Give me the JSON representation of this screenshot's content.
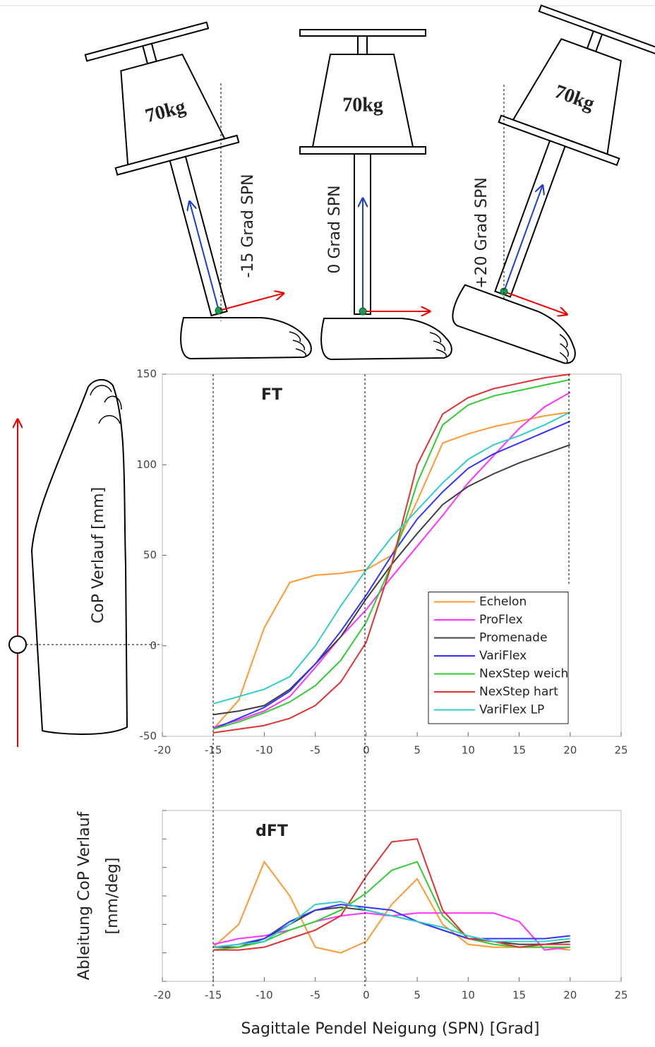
{
  "diagram": {
    "pendulums": [
      {
        "weight": "70kg",
        "label": "-15 Grad SPN"
      },
      {
        "weight": "70kg",
        "label": "0 Grad SPN"
      },
      {
        "weight": "70kg",
        "label": "+20 Grad SPN"
      }
    ]
  },
  "chart_data": [
    {
      "type": "line",
      "annotation": "FT",
      "ylabel": [
        "CoP Verlauf [mm]"
      ],
      "xlim": [
        -20,
        25
      ],
      "xticks": [
        -20,
        -15,
        -10,
        -5,
        0,
        5,
        10,
        15,
        20,
        25
      ],
      "ylim": [
        -50,
        150
      ],
      "yticks": [
        -50,
        0,
        50,
        100,
        150
      ],
      "ytick_labels": true,
      "legend": "lower right",
      "x": [
        -15,
        -12.5,
        -10,
        -7.5,
        -5,
        -2.5,
        0,
        2.5,
        5,
        7.5,
        10,
        12.5,
        15,
        17.5,
        20
      ],
      "series": [
        {
          "name": "Echelon",
          "color": "#ff9933",
          "values": [
            -46,
            -30,
            10,
            35,
            39,
            40,
            42,
            50,
            80,
            112,
            117,
            121,
            124,
            127,
            129
          ]
        },
        {
          "name": "ProFlex",
          "color": "#ff33ff",
          "values": [
            -45,
            -41,
            -36,
            -28,
            -12,
            5,
            20,
            38,
            55,
            72,
            90,
            105,
            120,
            132,
            140
          ]
        },
        {
          "name": "Promenade",
          "color": "#404040",
          "values": [
            -38,
            -36,
            -33,
            -24,
            -10,
            5,
            26,
            45,
            62,
            78,
            88,
            95,
            101,
            106,
            111
          ]
        },
        {
          "name": "VariFlex",
          "color": "#3333ff",
          "values": [
            -46,
            -40,
            -34,
            -25,
            -10,
            8,
            28,
            50,
            70,
            85,
            98,
            106,
            112,
            118,
            124
          ]
        },
        {
          "name": "NexStep weich",
          "color": "#33cc33",
          "values": [
            -46,
            -42,
            -37,
            -31,
            -22,
            -8,
            13,
            45,
            90,
            122,
            133,
            138,
            141,
            144,
            147
          ]
        },
        {
          "name": "NexStep hart",
          "color": "#dd3333",
          "values": [
            -48,
            -46,
            -44,
            -40,
            -33,
            -20,
            2,
            45,
            100,
            128,
            137,
            142,
            145,
            148,
            150
          ]
        },
        {
          "name": "VariFlex LP",
          "color": "#33cccc",
          "values": [
            -32,
            -28,
            -24,
            -17,
            0,
            22,
            42,
            60,
            75,
            90,
            103,
            111,
            116,
            122,
            129
          ]
        }
      ]
    },
    {
      "type": "line",
      "annotation": "dFT",
      "ylabel": [
        "Ableitung CoP Verlauf",
        "[mm/deg]"
      ],
      "xlabel": "Sagittale Pendel Neigung (SPN) [Grad]",
      "xlim": [
        -20,
        25
      ],
      "xticks": [
        -20,
        -15,
        -10,
        -5,
        0,
        5,
        10,
        15,
        20,
        25
      ],
      "ylim": [
        0,
        6
      ],
      "yticks": [
        0,
        1,
        2,
        3,
        4,
        5,
        6
      ],
      "ytick_labels": false,
      "x": [
        -15,
        -12.5,
        -10,
        -7.5,
        -5,
        -2.5,
        0,
        2.5,
        5,
        7.5,
        10,
        12.5,
        15,
        17.5,
        20
      ],
      "series": [
        {
          "name": "Echelon",
          "color": "#ff9933",
          "values": [
            1.2,
            2.0,
            4.2,
            3.0,
            1.2,
            1.0,
            1.4,
            2.7,
            3.6,
            2.0,
            1.3,
            1.2,
            1.2,
            1.2,
            1.1
          ]
        },
        {
          "name": "ProFlex",
          "color": "#ff33ff",
          "values": [
            1.3,
            1.5,
            1.6,
            1.8,
            2.1,
            2.3,
            2.4,
            2.3,
            2.4,
            2.4,
            2.4,
            2.4,
            2.1,
            1.1,
            1.2
          ]
        },
        {
          "name": "Promenade",
          "color": "#404040",
          "values": [
            1.2,
            1.2,
            1.5,
            2.0,
            2.5,
            2.6,
            2.5,
            2.3,
            2.1,
            1.8,
            1.5,
            1.4,
            1.3,
            1.3,
            1.4
          ]
        },
        {
          "name": "VariFlex",
          "color": "#3333ff",
          "values": [
            1.2,
            1.3,
            1.5,
            2.1,
            2.5,
            2.7,
            2.6,
            2.5,
            2.1,
            1.8,
            1.5,
            1.5,
            1.5,
            1.5,
            1.6
          ]
        },
        {
          "name": "NexStep weich",
          "color": "#33cc33",
          "values": [
            1.1,
            1.2,
            1.4,
            1.8,
            2.1,
            2.5,
            3.1,
            3.9,
            4.2,
            2.3,
            1.5,
            1.3,
            1.2,
            1.2,
            1.2
          ]
        },
        {
          "name": "NexStep hart",
          "color": "#dd3333",
          "values": [
            1.1,
            1.1,
            1.2,
            1.5,
            1.8,
            2.3,
            3.7,
            4.9,
            5.0,
            2.5,
            1.5,
            1.4,
            1.2,
            1.3,
            1.3
          ]
        },
        {
          "name": "VariFlex LP",
          "color": "#33cccc",
          "values": [
            1.2,
            1.3,
            1.4,
            2.0,
            2.7,
            2.8,
            2.5,
            2.3,
            2.1,
            1.9,
            1.6,
            1.4,
            1.4,
            1.4,
            1.5
          ]
        }
      ]
    }
  ]
}
